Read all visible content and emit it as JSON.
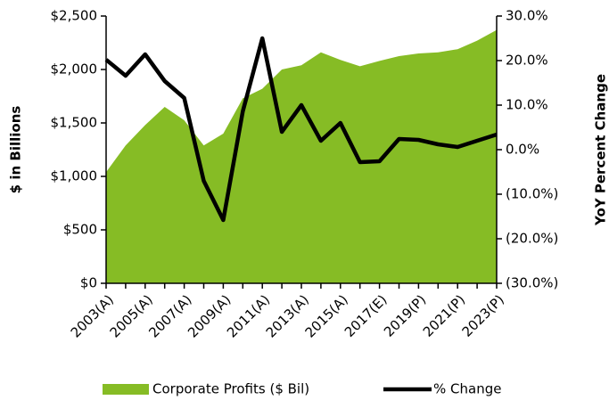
{
  "chart_data": {
    "type": "area",
    "y_label": "$ in Billions",
    "y2_label": "YoY Percent Change",
    "categories": [
      "2003(A)",
      null,
      "2005(A)",
      null,
      "2007(A)",
      null,
      "2009(A)",
      null,
      "2011(A)",
      null,
      "2013(A)",
      null,
      "2015(A)",
      null,
      "2017(E)",
      null,
      "2019(P)",
      null,
      "2021(P)",
      null,
      "2023(P)"
    ],
    "series": [
      {
        "name": "Corporate Profits ($ Bil)",
        "type": "area",
        "axis": "y",
        "color": "#86bc25",
        "values": [
          1040,
          1290,
          1480,
          1650,
          1525,
          1290,
          1400,
          1730,
          1820,
          2000,
          2040,
          2160,
          2090,
          2030,
          2080,
          2125,
          2150,
          2160,
          2190,
          2270,
          2370
        ]
      },
      {
        "name": "% Change",
        "type": "line",
        "axis": "y2",
        "color": "#000000",
        "values": [
          20.2,
          16.6,
          21.4,
          15.4,
          11.6,
          -7.0,
          -15.8,
          8.6,
          25.0,
          4.0,
          10.0,
          2.0,
          6.0,
          -2.8,
          -2.6,
          2.4,
          2.2,
          1.2,
          0.6,
          2.0,
          3.4
        ]
      }
    ],
    "ylim": [
      0,
      2500
    ],
    "yticks": [
      {
        "value": 0,
        "label": "$0"
      },
      {
        "value": 500,
        "label": "$500"
      },
      {
        "value": 1000,
        "label": "$1,000"
      },
      {
        "value": 1500,
        "label": "$1,500"
      },
      {
        "value": 2000,
        "label": "$2,000"
      },
      {
        "value": 2500,
        "label": "$2,500"
      }
    ],
    "y2lim": [
      -30,
      30
    ],
    "y2ticks": [
      {
        "value": -30,
        "label": "(30.0%)"
      },
      {
        "value": -20,
        "label": "(20.0%)"
      },
      {
        "value": -10,
        "label": "(10.0%)"
      },
      {
        "value": 0,
        "label": "0.0%"
      },
      {
        "value": 10,
        "label": "10.0%"
      },
      {
        "value": 20,
        "label": "20.0%"
      },
      {
        "value": 30,
        "label": "30.0%"
      }
    ],
    "grid": false,
    "legend": "bottom"
  }
}
